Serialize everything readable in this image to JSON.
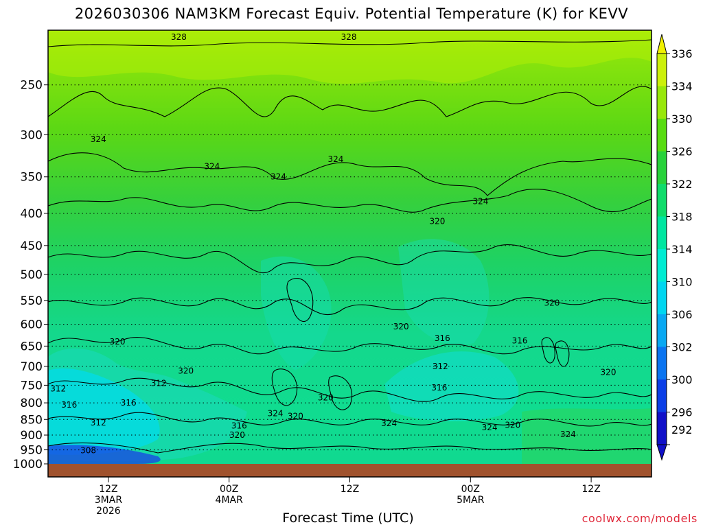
{
  "title": "2026030306 NAM3KM Forecast Equiv. Potential Temperature (K) for KEVV",
  "xaxis_title": "Forecast Time (UTC)",
  "credit": "coolwx.com/models",
  "colors": {
    "ground": "#a0522d",
    "contour": "#000000",
    "gridline": "#000000"
  },
  "colorbar": {
    "levels": [
      292,
      296,
      300,
      302,
      306,
      310,
      314,
      318,
      322,
      326,
      330,
      334,
      336
    ],
    "labels": [
      "292",
      "296",
      "300",
      "302",
      "306",
      "310",
      "314",
      "318",
      "322",
      "326",
      "330",
      "334",
      "336"
    ],
    "colors": [
      "#1010c8",
      "#0b3ee6",
      "#0a74f0",
      "#08a8f2",
      "#00d6f0",
      "#00ecd2",
      "#00e6a0",
      "#10dc6a",
      "#28d23a",
      "#58dc10",
      "#98e80a",
      "#ccf00a",
      "#f0f000"
    ]
  },
  "chart_data": {
    "type": "heatmap",
    "title": "2026030306 NAM3KM Forecast Equiv. Potential Temperature (K) for KEVV",
    "xlabel": "Forecast Time (UTC)",
    "ylabel": "",
    "units": "K",
    "y_scale": "log-pressure (hPa), inverted",
    "ylim": [
      1000,
      200
    ],
    "yticks": [
      250,
      300,
      350,
      400,
      450,
      500,
      550,
      600,
      650,
      700,
      750,
      800,
      850,
      900,
      950,
      1000
    ],
    "ytick_labels": [
      "250",
      "300",
      "350",
      "400",
      "450",
      "500",
      "550",
      "600",
      "650",
      "700",
      "750",
      "800",
      "850",
      "900",
      "950",
      "1000"
    ],
    "xlim_hours": [
      0,
      60
    ],
    "xticks": [
      {
        "hour": 6,
        "lines": [
          "12Z",
          "3MAR",
          "2026"
        ]
      },
      {
        "hour": 18,
        "lines": [
          "00Z",
          "4MAR"
        ]
      },
      {
        "hour": 30,
        "lines": [
          "12Z"
        ]
      },
      {
        "hour": 42,
        "lines": [
          "00Z",
          "5MAR"
        ]
      },
      {
        "hour": 54,
        "lines": [
          "12Z"
        ]
      }
    ],
    "grid": "dotted horizontal lines at pressure levels",
    "contour_labels": [
      {
        "text": "328",
        "hour": 13,
        "p": 210
      },
      {
        "text": "328",
        "hour": 29.9,
        "p": 210
      },
      {
        "text": "324",
        "hour": 5,
        "p": 305
      },
      {
        "text": "324",
        "hour": 16.3,
        "p": 337
      },
      {
        "text": "324",
        "hour": 22.9,
        "p": 350
      },
      {
        "text": "324",
        "hour": 28.6,
        "p": 328
      },
      {
        "text": "324",
        "hour": 43,
        "p": 383
      },
      {
        "text": "320",
        "hour": 38.7,
        "p": 412
      },
      {
        "text": "320",
        "hour": 50.1,
        "p": 555
      },
      {
        "text": "320",
        "hour": 35.1,
        "p": 605
      },
      {
        "text": "316",
        "hour": 39.2,
        "p": 632
      },
      {
        "text": "316",
        "hour": 46.9,
        "p": 637
      },
      {
        "text": "320",
        "hour": 6.9,
        "p": 640
      },
      {
        "text": "312",
        "hour": 39,
        "p": 700
      },
      {
        "text": "320",
        "hour": 13.7,
        "p": 712
      },
      {
        "text": "320",
        "hour": 55.7,
        "p": 715
      },
      {
        "text": "312",
        "hour": 11,
        "p": 745
      },
      {
        "text": "316",
        "hour": 38.9,
        "p": 757
      },
      {
        "text": "312",
        "hour": 1,
        "p": 760
      },
      {
        "text": "320",
        "hour": 27.6,
        "p": 785
      },
      {
        "text": "316",
        "hour": 8,
        "p": 800
      },
      {
        "text": "316",
        "hour": 2.1,
        "p": 806
      },
      {
        "text": "324",
        "hour": 22.6,
        "p": 832
      },
      {
        "text": "320",
        "hour": 24.6,
        "p": 840
      },
      {
        "text": "312",
        "hour": 5,
        "p": 860
      },
      {
        "text": "316",
        "hour": 19,
        "p": 870
      },
      {
        "text": "324",
        "hour": 33.9,
        "p": 862
      },
      {
        "text": "324",
        "hour": 43.9,
        "p": 875
      },
      {
        "text": "320",
        "hour": 46.2,
        "p": 868
      },
      {
        "text": "320",
        "hour": 18.8,
        "p": 900
      },
      {
        "text": "324",
        "hour": 51.7,
        "p": 898
      },
      {
        "text": "308",
        "hour": 4,
        "p": 952
      }
    ],
    "ground_level_hPa": 1000
  }
}
